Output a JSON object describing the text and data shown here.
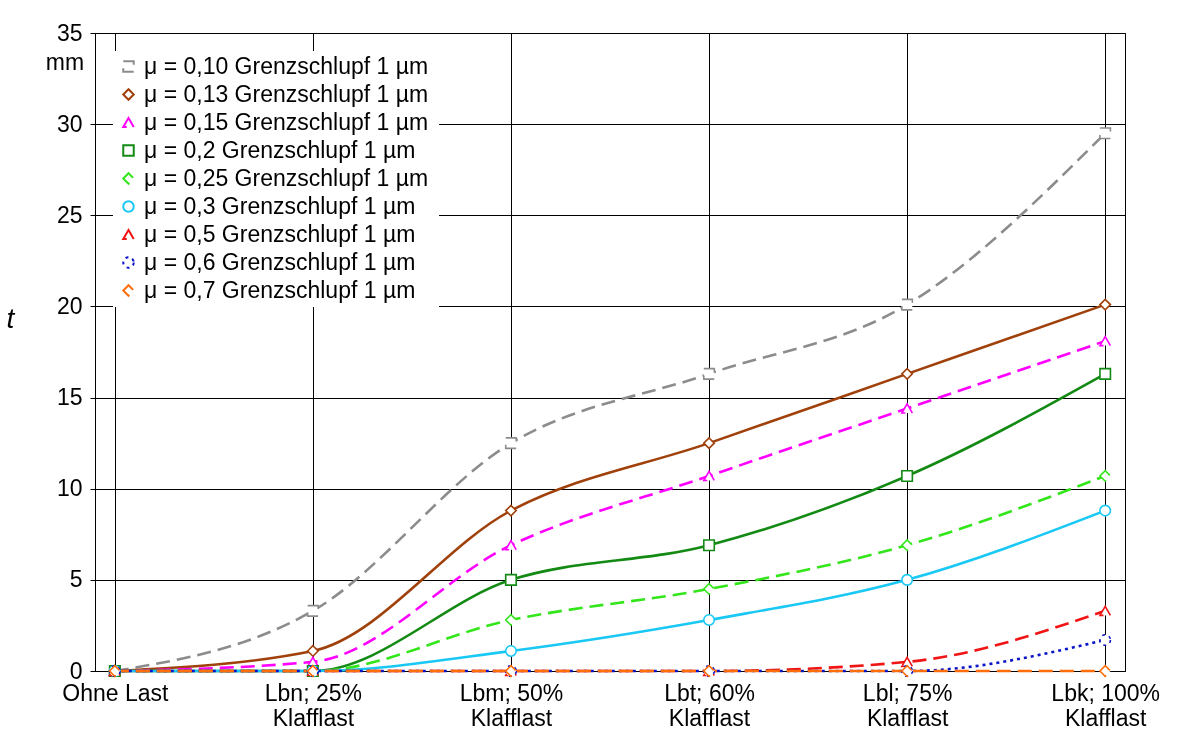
{
  "chart_data": {
    "type": "line",
    "ylabel": "t",
    "annotations": [
      "mm"
    ],
    "categories": [
      "Ohne Last",
      "Lbn; 25%\nKlafflast",
      "Lbm; 50%\nKlafflast",
      "Lbt; 60%\nKlafflast",
      "Lbl; 75%\nKlafflast",
      "Lbk; 100%\nKlafflast"
    ],
    "series": [
      {
        "name": "μ = 0,10  Grenzschlupf 1 µm",
        "color": "#8c8c8c",
        "marker": "square",
        "line_style": "dashed",
        "values": [
          0,
          3.3,
          12.5,
          16.3,
          20.1,
          29.5
        ]
      },
      {
        "name": "μ = 0,13  Grenzschlupf 1 µm",
        "color": "#a0400a",
        "marker": "diamond",
        "line_style": "solid",
        "values": [
          0,
          1.1,
          8.8,
          12.5,
          16.3,
          20.1
        ]
      },
      {
        "name": "μ = 0,15  Grenzschlupf 1 µm",
        "color": "#ff00ff",
        "marker": "triangle",
        "line_style": "dashed",
        "values": [
          0,
          0.5,
          6.9,
          10.7,
          14.4,
          18.1
        ]
      },
      {
        "name": "μ = 0,2  Grenzschlupf 1 µm",
        "color": "#138a13",
        "marker": "square",
        "line_style": "solid",
        "values": [
          0,
          0,
          5.0,
          6.9,
          10.7,
          16.3
        ]
      },
      {
        "name": "μ = 0,25  Grenzschlupf 1 µm",
        "color": "#33e61a",
        "marker": "diamond",
        "line_style": "dashed",
        "values": [
          0,
          0,
          2.8,
          4.5,
          6.9,
          10.7
        ]
      },
      {
        "name": "μ = 0,3  Grenzschlupf 1 µm",
        "color": "#1ac8f5",
        "marker": "circle",
        "line_style": "solid",
        "values": [
          0,
          0,
          1.1,
          2.8,
          5.0,
          8.8
        ]
      },
      {
        "name": "μ = 0,5  Grenzschlupf 1 µm",
        "color": "#f01414",
        "marker": "triangle",
        "line_style": "dashed",
        "values": [
          0,
          0,
          0,
          0,
          0.5,
          3.3
        ]
      },
      {
        "name": "μ = 0,6  Grenzschlupf 1 µm",
        "color": "#0a14c8",
        "marker": "circle",
        "line_style": "dotted",
        "values": [
          0,
          0,
          0,
          0,
          0,
          1.7
        ]
      },
      {
        "name": "μ = 0,7  Grenzschlupf 1 µm",
        "color": "#ff6e0a",
        "marker": "diamond",
        "line_style": "dashed",
        "values": [
          0,
          0,
          0,
          0,
          0,
          0
        ]
      }
    ],
    "ylim": [
      0,
      35
    ],
    "yticks": [
      0,
      5,
      10,
      15,
      20,
      25,
      30,
      35
    ],
    "grid": true,
    "legend": "top left"
  }
}
